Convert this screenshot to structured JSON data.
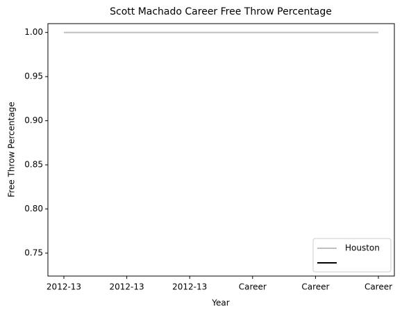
{
  "chart_data": {
    "type": "line",
    "title": "Scott Machado Career Free Throw Percentage",
    "xlabel": "Year",
    "ylabel": "Free Throw Percentage",
    "categories": [
      "2012-13",
      "2012-13",
      "2012-13",
      "Career",
      "Career",
      "Career"
    ],
    "series": [
      {
        "name": "Houston",
        "color": "#bfbfbf",
        "values": [
          1,
          1,
          1,
          1,
          1,
          1
        ]
      },
      {
        "color": "#000000",
        "values": [
          null,
          null,
          null,
          null,
          null,
          null
        ]
      }
    ],
    "ylim": [
      0.724,
      1.01
    ],
    "yticks": [
      0.75,
      {
        "value": 0.8,
        "label": "0.80"
      },
      0.85,
      {
        "value": 0.9,
        "label": "0.90"
      },
      0.95,
      {
        "value": 1,
        "label": "1.00"
      }
    ],
    "legend": "lower right",
    "grid": false
  }
}
